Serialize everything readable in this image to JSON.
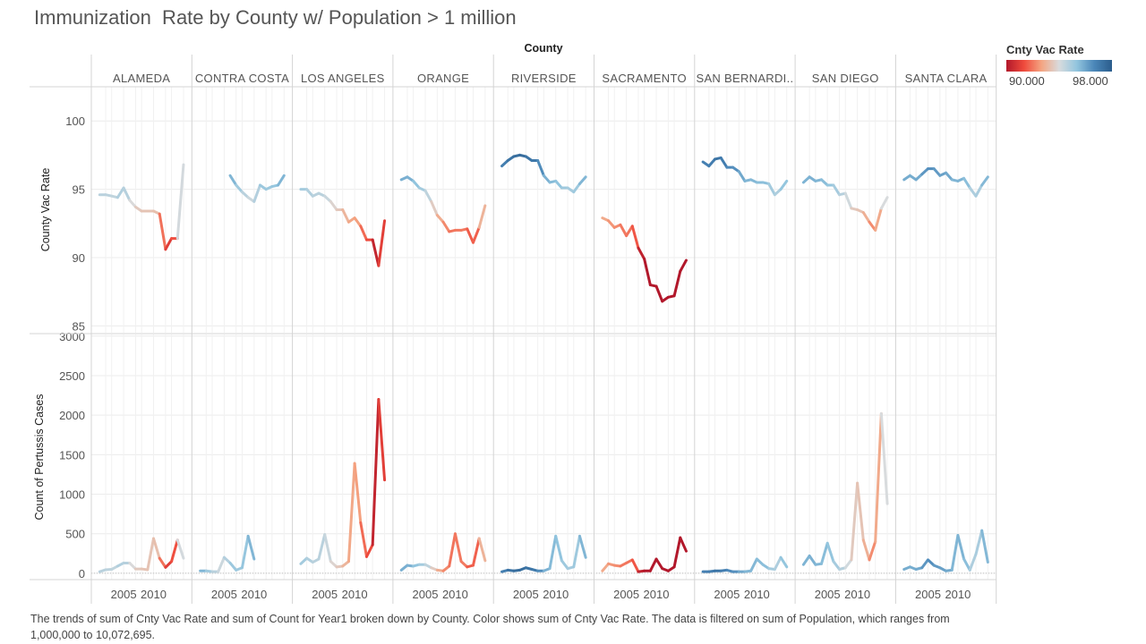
{
  "title": "Immunization  Rate by County w/ Population > 1 million",
  "caption": "The trends of sum of Cnty Vac Rate and sum of Count for Year1 broken down by County.  Color shows sum of Cnty Vac Rate. The data is filtered on sum of Population, which ranges from 1,000,000 to 10,072,695.",
  "legend": {
    "title": "Cnty Vac Rate",
    "min_label": "90.000",
    "max_label": "98.000",
    "min": 90,
    "max": 98,
    "colors": [
      "#b2182b",
      "#ef4a3c",
      "#f4a582",
      "#d8dbdd",
      "#92c5de",
      "#4a86b8",
      "#2b5d8c"
    ]
  },
  "chart_data": {
    "type": "line",
    "column_header": "County",
    "counties": [
      "ALAMEDA",
      "CONTRA COSTA",
      "LOS ANGELES",
      "ORANGE",
      "RIVERSIDE",
      "SACRAMENTO",
      "SAN BERNARDI..",
      "SAN DIEGO",
      "SANTA CLARA"
    ],
    "x_tick_labels": [
      "2005",
      "2010"
    ],
    "x_ticks": [
      2005,
      2010
    ],
    "x_range": [
      2000.5,
      2015.5
    ],
    "panels": [
      {
        "ylabel": "County Vac Rate",
        "ylim": [
          84.5,
          102.5
        ],
        "yticks": [
          85,
          90,
          95,
          100
        ],
        "ytick_labels": [
          "85",
          "90",
          "95",
          "100"
        ],
        "series": [
          {
            "county": "ALAMEDA",
            "x": [
              2001,
              2002,
              2003,
              2004,
              2005,
              2006,
              2007,
              2008,
              2009,
              2010,
              2011,
              2012,
              2013,
              2014,
              2015
            ],
            "y": [
              94.6,
              94.6,
              94.5,
              94.4,
              95.1,
              94.2,
              93.7,
              93.4,
              93.4,
              93.4,
              93.2,
              90.6,
              91.4,
              91.4,
              96.8
            ]
          },
          {
            "county": "CONTRA COSTA",
            "x": [
              2006,
              2007,
              2008,
              2009,
              2010,
              2011,
              2012,
              2013,
              2014,
              2015
            ],
            "y": [
              96.0,
              95.3,
              94.8,
              94.4,
              94.1,
              95.3,
              95.0,
              95.2,
              95.3,
              96.0
            ]
          },
          {
            "county": "LOS ANGELES",
            "x": [
              2001,
              2002,
              2003,
              2004,
              2005,
              2006,
              2007,
              2008,
              2009,
              2010,
              2011,
              2012,
              2013,
              2014,
              2015
            ],
            "y": [
              95.0,
              95.0,
              94.5,
              94.7,
              94.5,
              94.1,
              93.5,
              93.5,
              92.6,
              92.9,
              92.3,
              91.3,
              91.3,
              89.4,
              92.7
            ]
          },
          {
            "county": "ORANGE",
            "x": [
              2001,
              2002,
              2003,
              2004,
              2005,
              2006,
              2007,
              2008,
              2009,
              2010,
              2011,
              2012,
              2013,
              2014,
              2015
            ],
            "y": [
              95.7,
              95.9,
              95.6,
              95.1,
              94.9,
              94.1,
              93.1,
              92.6,
              91.9,
              92.0,
              92.0,
              92.1,
              91.1,
              92.2,
              93.8
            ]
          },
          {
            "county": "RIVERSIDE",
            "x": [
              2001,
              2002,
              2003,
              2004,
              2005,
              2006,
              2007,
              2008,
              2009,
              2010,
              2011,
              2012,
              2013,
              2014,
              2015
            ],
            "y": [
              96.7,
              97.1,
              97.4,
              97.5,
              97.4,
              97.1,
              97.1,
              96.0,
              95.5,
              95.6,
              95.1,
              95.1,
              94.8,
              95.4,
              95.9
            ]
          },
          {
            "county": "SACRAMENTO",
            "x": [
              2001,
              2002,
              2003,
              2004,
              2005,
              2006,
              2007,
              2008,
              2009,
              2010,
              2011,
              2012,
              2013,
              2014,
              2015
            ],
            "y": [
              92.9,
              92.7,
              92.2,
              92.4,
              91.6,
              92.3,
              90.7,
              89.9,
              88.0,
              87.9,
              86.8,
              87.1,
              87.2,
              89.0,
              89.8
            ]
          },
          {
            "county": "SAN BERNARDI..",
            "x": [
              2001,
              2002,
              2003,
              2004,
              2005,
              2006,
              2007,
              2008,
              2009,
              2010,
              2011,
              2012,
              2013,
              2014,
              2015
            ],
            "y": [
              97.0,
              96.7,
              97.2,
              97.3,
              96.6,
              96.6,
              96.3,
              95.6,
              95.7,
              95.5,
              95.5,
              95.4,
              94.6,
              95.0,
              95.6
            ]
          },
          {
            "county": "SAN DIEGO",
            "x": [
              2001,
              2002,
              2003,
              2004,
              2005,
              2006,
              2007,
              2008,
              2009,
              2010,
              2011,
              2012,
              2013,
              2014,
              2015
            ],
            "y": [
              95.5,
              95.9,
              95.6,
              95.7,
              95.3,
              95.3,
              94.6,
              94.7,
              93.6,
              93.5,
              93.3,
              92.6,
              92.0,
              93.6,
              94.4
            ]
          },
          {
            "county": "SANTA CLARA",
            "x": [
              2001,
              2002,
              2003,
              2004,
              2005,
              2006,
              2007,
              2008,
              2009,
              2010,
              2011,
              2012,
              2013,
              2014,
              2015
            ],
            "y": [
              95.7,
              96.0,
              95.7,
              96.1,
              96.5,
              96.5,
              96.0,
              96.2,
              95.7,
              95.6,
              95.8,
              95.1,
              94.5,
              95.3,
              95.9
            ]
          }
        ]
      },
      {
        "ylabel": "Count of Pertussis Cases",
        "ylim": [
          -80,
          3020
        ],
        "yticks": [
          0,
          500,
          1000,
          1500,
          2000,
          2500,
          3000
        ],
        "ytick_labels": [
          "0",
          "500",
          "1000",
          "1500",
          "2000",
          "2500",
          "3000"
        ],
        "series": [
          {
            "county": "ALAMEDA",
            "x": [
              2001,
              2002,
              2003,
              2004,
              2005,
              2006,
              2007,
              2008,
              2009,
              2010,
              2011,
              2012,
              2013,
              2014,
              2015
            ],
            "y": [
              20,
              45,
              50,
              90,
              130,
              130,
              55,
              55,
              45,
              440,
              190,
              75,
              150,
              420,
              190
            ],
            "rate": [
              94.6,
              94.6,
              94.5,
              94.4,
              95.1,
              94.2,
              93.7,
              93.4,
              93.4,
              93.4,
              93.2,
              90.6,
              91.4,
              91.4,
              96.8
            ]
          },
          {
            "county": "CONTRA COSTA",
            "x": [
              2001,
              2002,
              2003,
              2004,
              2005,
              2006,
              2007,
              2008,
              2009,
              2010
            ],
            "y": [
              30,
              30,
              20,
              20,
              200,
              130,
              40,
              70,
              470,
              180
            ],
            "rate": [
              96.0,
              95.3,
              94.8,
              94.4,
              94.1,
              95.3,
              95.0,
              95.2,
              95.3,
              96.0
            ]
          },
          {
            "county": "LOS ANGELES",
            "x": [
              2001,
              2002,
              2003,
              2004,
              2005,
              2006,
              2007,
              2008,
              2009,
              2010,
              2011,
              2012,
              2013,
              2014,
              2015
            ],
            "y": [
              120,
              190,
              140,
              180,
              490,
              150,
              80,
              90,
              150,
              1390,
              640,
              210,
              360,
              2200,
              1180
            ],
            "rate": [
              95.0,
              95.0,
              94.5,
              94.7,
              94.5,
              94.1,
              93.5,
              93.5,
              92.6,
              92.9,
              92.3,
              91.3,
              91.3,
              89.4,
              92.7
            ]
          },
          {
            "county": "ORANGE",
            "x": [
              2001,
              2002,
              2003,
              2004,
              2005,
              2006,
              2007,
              2008,
              2009,
              2010,
              2011,
              2012,
              2013,
              2014,
              2015
            ],
            "y": [
              40,
              100,
              90,
              110,
              110,
              70,
              40,
              30,
              90,
              500,
              150,
              80,
              100,
              440,
              160
            ],
            "rate": [
              95.7,
              95.9,
              95.6,
              95.1,
              94.9,
              94.1,
              93.1,
              92.6,
              91.9,
              92.0,
              92.0,
              92.1,
              91.1,
              92.2,
              93.8
            ]
          },
          {
            "county": "RIVERSIDE",
            "x": [
              2001,
              2002,
              2003,
              2004,
              2005,
              2006,
              2007,
              2008,
              2009,
              2010,
              2011,
              2012,
              2013,
              2014,
              2015
            ],
            "y": [
              20,
              40,
              30,
              40,
              70,
              50,
              30,
              30,
              60,
              470,
              160,
              60,
              80,
              470,
              200
            ],
            "rate": [
              96.7,
              97.1,
              97.4,
              97.5,
              97.4,
              97.1,
              97.1,
              96.0,
              95.5,
              95.6,
              95.1,
              95.1,
              94.8,
              95.4,
              95.9
            ]
          },
          {
            "county": "SACRAMENTO",
            "x": [
              2001,
              2002,
              2003,
              2004,
              2005,
              2006,
              2007,
              2008,
              2009,
              2010,
              2011,
              2012,
              2013,
              2014,
              2015
            ],
            "y": [
              30,
              120,
              100,
              90,
              130,
              170,
              20,
              30,
              30,
              180,
              60,
              30,
              80,
              450,
              280
            ],
            "rate": [
              92.9,
              92.7,
              92.2,
              92.4,
              91.6,
              92.3,
              90.7,
              89.9,
              88.0,
              87.9,
              86.8,
              87.1,
              87.2,
              89.0,
              89.8
            ]
          },
          {
            "county": "SAN BERNARDI..",
            "x": [
              2001,
              2002,
              2003,
              2004,
              2005,
              2006,
              2007,
              2008,
              2009,
              2010,
              2011,
              2012,
              2013,
              2014,
              2015
            ],
            "y": [
              20,
              20,
              30,
              30,
              40,
              20,
              20,
              20,
              30,
              180,
              110,
              60,
              50,
              200,
              80
            ],
            "rate": [
              97.0,
              96.7,
              97.2,
              97.3,
              96.6,
              96.6,
              96.3,
              95.6,
              95.7,
              95.5,
              95.5,
              95.4,
              94.6,
              95.0,
              95.6
            ]
          },
          {
            "county": "SAN DIEGO",
            "x": [
              2001,
              2002,
              2003,
              2004,
              2005,
              2006,
              2007,
              2008,
              2009,
              2010,
              2011,
              2012,
              2013,
              2014,
              2015
            ],
            "y": [
              110,
              220,
              110,
              120,
              380,
              150,
              50,
              70,
              170,
              1140,
              420,
              170,
              400,
              2020,
              880
            ],
            "rate": [
              95.5,
              95.9,
              95.6,
              95.7,
              95.3,
              95.3,
              94.6,
              94.7,
              93.6,
              93.5,
              93.3,
              92.6,
              92.0,
              93.6,
              94.4
            ]
          },
          {
            "county": "SANTA CLARA",
            "x": [
              2001,
              2002,
              2003,
              2004,
              2005,
              2006,
              2007,
              2008,
              2009,
              2010,
              2011,
              2012,
              2013,
              2014,
              2015
            ],
            "y": [
              50,
              80,
              50,
              70,
              170,
              100,
              70,
              30,
              40,
              480,
              180,
              40,
              240,
              540,
              140
            ],
            "rate": [
              95.7,
              96.0,
              95.7,
              96.1,
              96.5,
              96.5,
              96.0,
              96.2,
              95.7,
              95.6,
              95.8,
              95.1,
              94.5,
              95.3,
              95.9
            ]
          }
        ]
      }
    ]
  }
}
